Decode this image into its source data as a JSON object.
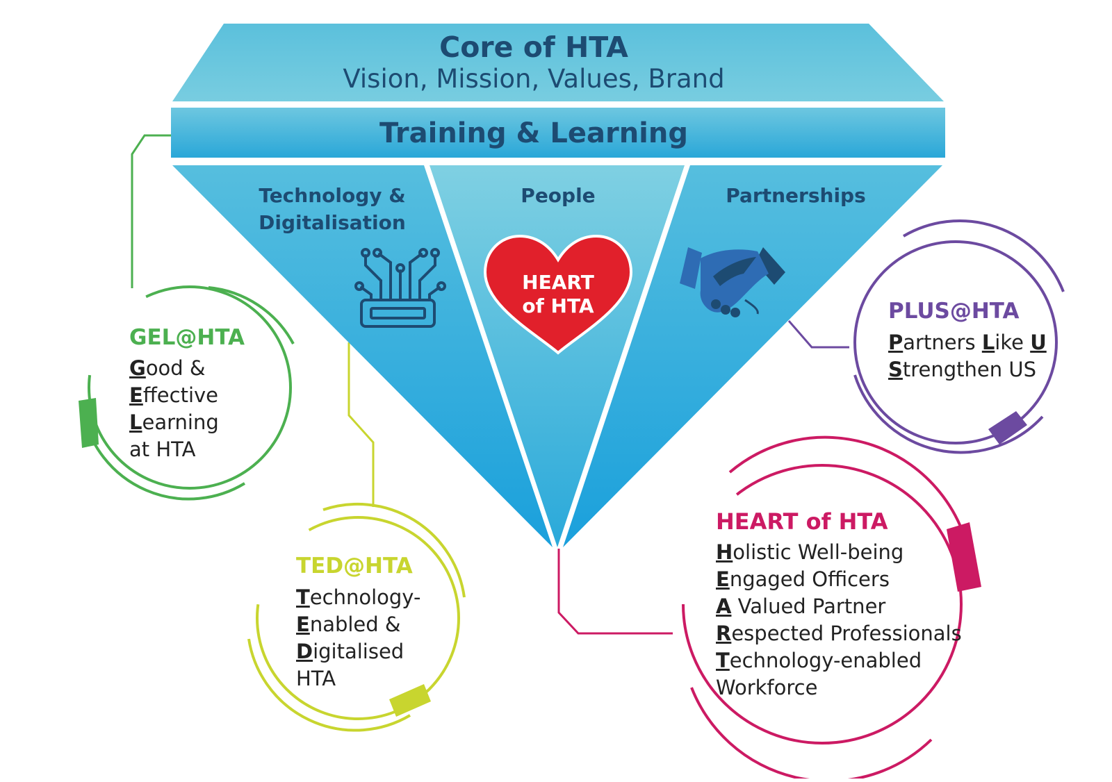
{
  "colors": {
    "blue_light": "#6ec6dc",
    "blue_mid": "#2ba9d9",
    "navy": "#1d4b72",
    "green": "#4cb050",
    "lime": "#c8d52f",
    "magenta": "#cc1a63",
    "purple": "#6c4aa0",
    "heart_red": "#e1202b"
  },
  "core": {
    "title": "Core of HTA",
    "subtitle": "Vision, Mission, Values, Brand"
  },
  "band": {
    "label": "Training & Learning"
  },
  "pillars": [
    {
      "lines": [
        "Technology &",
        "Digitalisation"
      ],
      "icon": "circuit-chip-icon"
    },
    {
      "lines": [
        "People"
      ],
      "icon": "heart-icon"
    },
    {
      "lines": [
        "Partnerships"
      ],
      "icon": "handshake-icon"
    }
  ],
  "heart_badge": {
    "lines": [
      "HEART",
      "of HTA"
    ]
  },
  "circles": {
    "gel": {
      "title": "GEL@HTA",
      "lines": [
        {
          "key": "G",
          "rest": "ood &"
        },
        {
          "key": "E",
          "rest": "ffective"
        },
        {
          "key": "L",
          "rest": "earning"
        },
        {
          "key": "",
          "rest": "at HTA"
        }
      ]
    },
    "ted": {
      "title": "TED@HTA",
      "lines": [
        {
          "key": "T",
          "rest": "echnology-"
        },
        {
          "key": "E",
          "rest": "nabled &"
        },
        {
          "key": "D",
          "rest": "igitalised"
        },
        {
          "key": "",
          "rest": "HTA"
        }
      ]
    },
    "plus": {
      "title": "PLUS@HTA",
      "line1": [
        {
          "key": "P",
          "rest": "artners "
        },
        {
          "key": "L",
          "rest": "ike "
        },
        {
          "key": "U",
          "rest": ""
        }
      ],
      "line2": [
        {
          "key": "S",
          "rest": "trengthen US"
        }
      ]
    },
    "heart": {
      "title": "HEART of HTA",
      "lines": [
        {
          "key": "H",
          "rest": "olistic Well-being"
        },
        {
          "key": "E",
          "rest": "ngaged Officers"
        },
        {
          "key": "A",
          "rest": " Valued Partner"
        },
        {
          "key": "R",
          "rest": "espected Professionals"
        },
        {
          "key": "T",
          "rest": "echnology-enabled"
        },
        {
          "key": "",
          "rest": "Workforce"
        }
      ]
    }
  }
}
